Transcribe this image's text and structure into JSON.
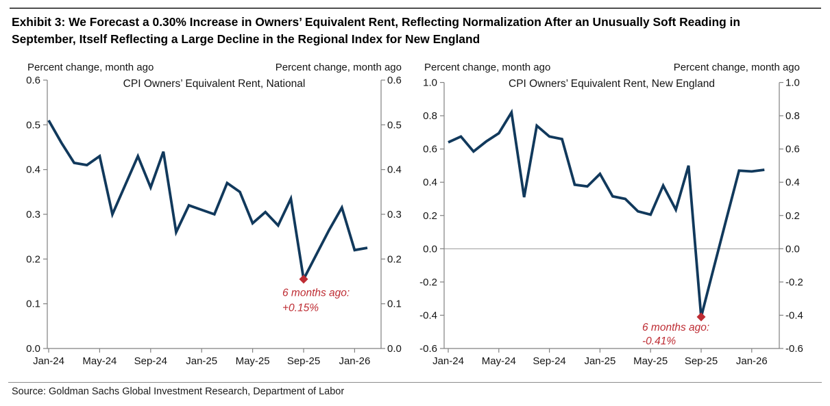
{
  "page": {
    "title": "Exhibit 3: We Forecast a 0.30% Increase in Owners’ Equivalent Rent, Reflecting Normalization After an Unusually Soft Reading in September, Itself Reflecting a Large Decline in the Regional Index for New England",
    "source": "Source: Goldman Sachs Global Investment Research, Department of Labor"
  },
  "colors": {
    "line": "#11395c",
    "accent_red": "#be2c33",
    "axis": "#808080",
    "zero_line": "#999999",
    "text": "#141414"
  },
  "chart_data": [
    {
      "type": "line",
      "title": "CPI Owners’ Equivalent Rent, National",
      "axis_header_left": "Percent change, month ago",
      "axis_header_right": "Percent change, month ago",
      "x": [
        "Jan-24",
        "Feb-24",
        "Mar-24",
        "Apr-24",
        "May-24",
        "Jun-24",
        "Jul-24",
        "Aug-24",
        "Sep-24",
        "Oct-24",
        "Nov-24",
        "Dec-24",
        "Jan-25",
        "Feb-25",
        "Mar-25",
        "Apr-25",
        "May-25",
        "Jun-25",
        "Jul-25",
        "Aug-25",
        "Sep-25",
        "Oct-25",
        "Nov-25",
        "Dec-25",
        "Jan-26",
        "Feb-26"
      ],
      "values": [
        0.51,
        0.46,
        0.415,
        0.41,
        0.43,
        0.3,
        0.365,
        0.43,
        0.36,
        0.44,
        0.26,
        0.32,
        0.31,
        0.3,
        0.37,
        0.35,
        0.28,
        0.305,
        0.275,
        0.335,
        0.155,
        0.21,
        0.265,
        0.315,
        0.22,
        0.225
      ],
      "ylim": [
        0.0,
        0.6
      ],
      "ytick_values": [
        0.0,
        0.1,
        0.2,
        0.3,
        0.4,
        0.5,
        0.6
      ],
      "ytick_labels": [
        "0.0",
        "0.1",
        "0.2",
        "0.3",
        "0.4",
        "0.5",
        "0.6"
      ],
      "xtick_labels": [
        "Jan-24",
        "May-24",
        "Sep-24",
        "Jan-25",
        "May-25",
        "Sep-25",
        "Jan-26"
      ],
      "xtick_every": 4,
      "zero_line": false,
      "grid": false,
      "annotation": {
        "line1": "6 months ago:",
        "line2": "+0.15%",
        "month": "Sep-25",
        "value": 0.155
      }
    },
    {
      "type": "line",
      "title": "CPI Owners’ Equivalent Rent, New England",
      "axis_header_left": "Percent change, month ago",
      "axis_header_right": "Percent change, month ago",
      "x": [
        "Jan-24",
        "Feb-24",
        "Mar-24",
        "Apr-24",
        "May-24",
        "Jun-24",
        "Jul-24",
        "Aug-24",
        "Sep-24",
        "Oct-24",
        "Nov-24",
        "Dec-24",
        "Jan-25",
        "Feb-25",
        "Mar-25",
        "Apr-25",
        "May-25",
        "Jun-25",
        "Jul-25",
        "Aug-25",
        "Sep-25",
        "Oct-25",
        "Nov-25",
        "Dec-25",
        "Jan-26",
        "Feb-26"
      ],
      "values": [
        0.64,
        0.675,
        0.585,
        0.645,
        0.695,
        0.82,
        0.31,
        0.74,
        0.675,
        0.66,
        0.385,
        0.375,
        0.45,
        0.315,
        0.3,
        0.225,
        0.205,
        0.38,
        0.235,
        0.5,
        -0.41,
        -0.115,
        0.18,
        0.47,
        0.465,
        0.475
      ],
      "ylim": [
        -0.6,
        1.0
      ],
      "ytick_values": [
        -0.6,
        -0.4,
        -0.2,
        0.0,
        0.2,
        0.4,
        0.6,
        0.8,
        1.0
      ],
      "ytick_labels": [
        "-0.6",
        "-0.4",
        "-0.2",
        "0.0",
        "0.2",
        "0.4",
        "0.6",
        "0.8",
        "1.0"
      ],
      "xtick_labels": [
        "Jan-24",
        "May-24",
        "Sep-24",
        "Jan-25",
        "May-25",
        "Sep-25",
        "Jan-26"
      ],
      "xtick_every": 4,
      "zero_line": true,
      "grid": false,
      "annotation": {
        "line1": "6 months ago:",
        "line2": "-0.41%",
        "month": "Sep-25",
        "value": -0.41
      }
    }
  ]
}
